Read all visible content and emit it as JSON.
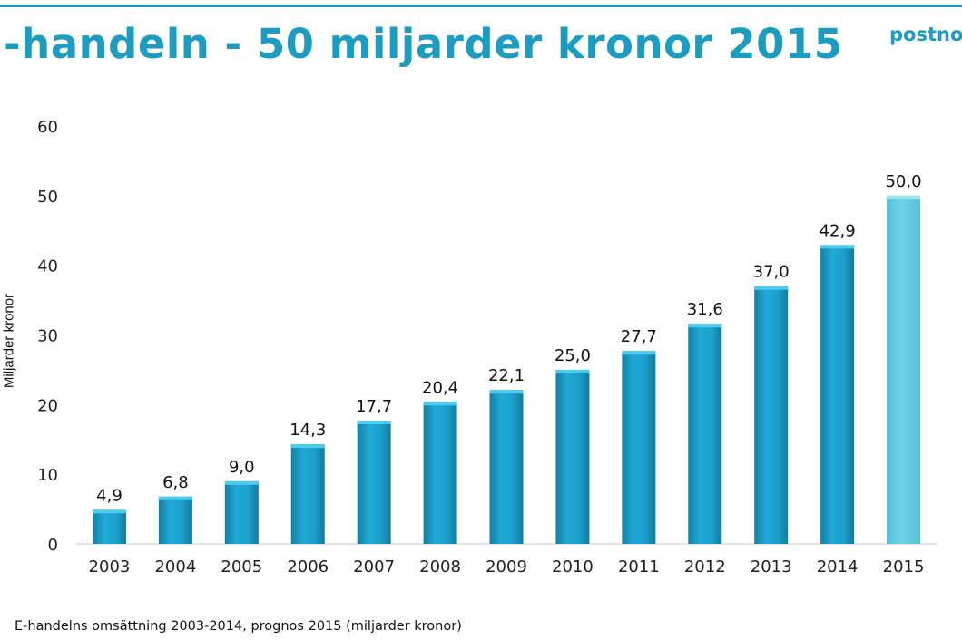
{
  "header": {
    "title": "-handeln - 50 miljarder kronor 2015",
    "logo_text": "postno"
  },
  "caption": "E-handelns omsättning 2003-2014, prognos 2015 (miljarder kronor)",
  "colors": {
    "brand": "#1b9cc0",
    "bar": "#1c9fc9",
    "bar_forecast": "#64cde4"
  },
  "chart_data": {
    "type": "bar",
    "title": "",
    "xlabel": "",
    "ylabel": "Miljarder kronor",
    "categories": [
      "2003",
      "2004",
      "2005",
      "2006",
      "2007",
      "2008",
      "2009",
      "2010",
      "2011",
      "2012",
      "2013",
      "2014",
      "2015"
    ],
    "values": [
      4.9,
      6.8,
      9.0,
      14.3,
      17.7,
      20.4,
      22.1,
      25.0,
      27.7,
      31.6,
      37.0,
      42.9,
      50.0
    ],
    "data_labels": [
      "4,9",
      "6,8",
      "9,0",
      "14,3",
      "17,7",
      "20,4",
      "22,1",
      "25,0",
      "27,7",
      "31,6",
      "37,0",
      "42,9",
      "50,0"
    ],
    "forecast_categories": [
      "2015"
    ],
    "ylim": [
      0,
      60
    ],
    "yticks": [
      0,
      10,
      20,
      30,
      40,
      50,
      60
    ],
    "grid": false,
    "legend": "none"
  }
}
